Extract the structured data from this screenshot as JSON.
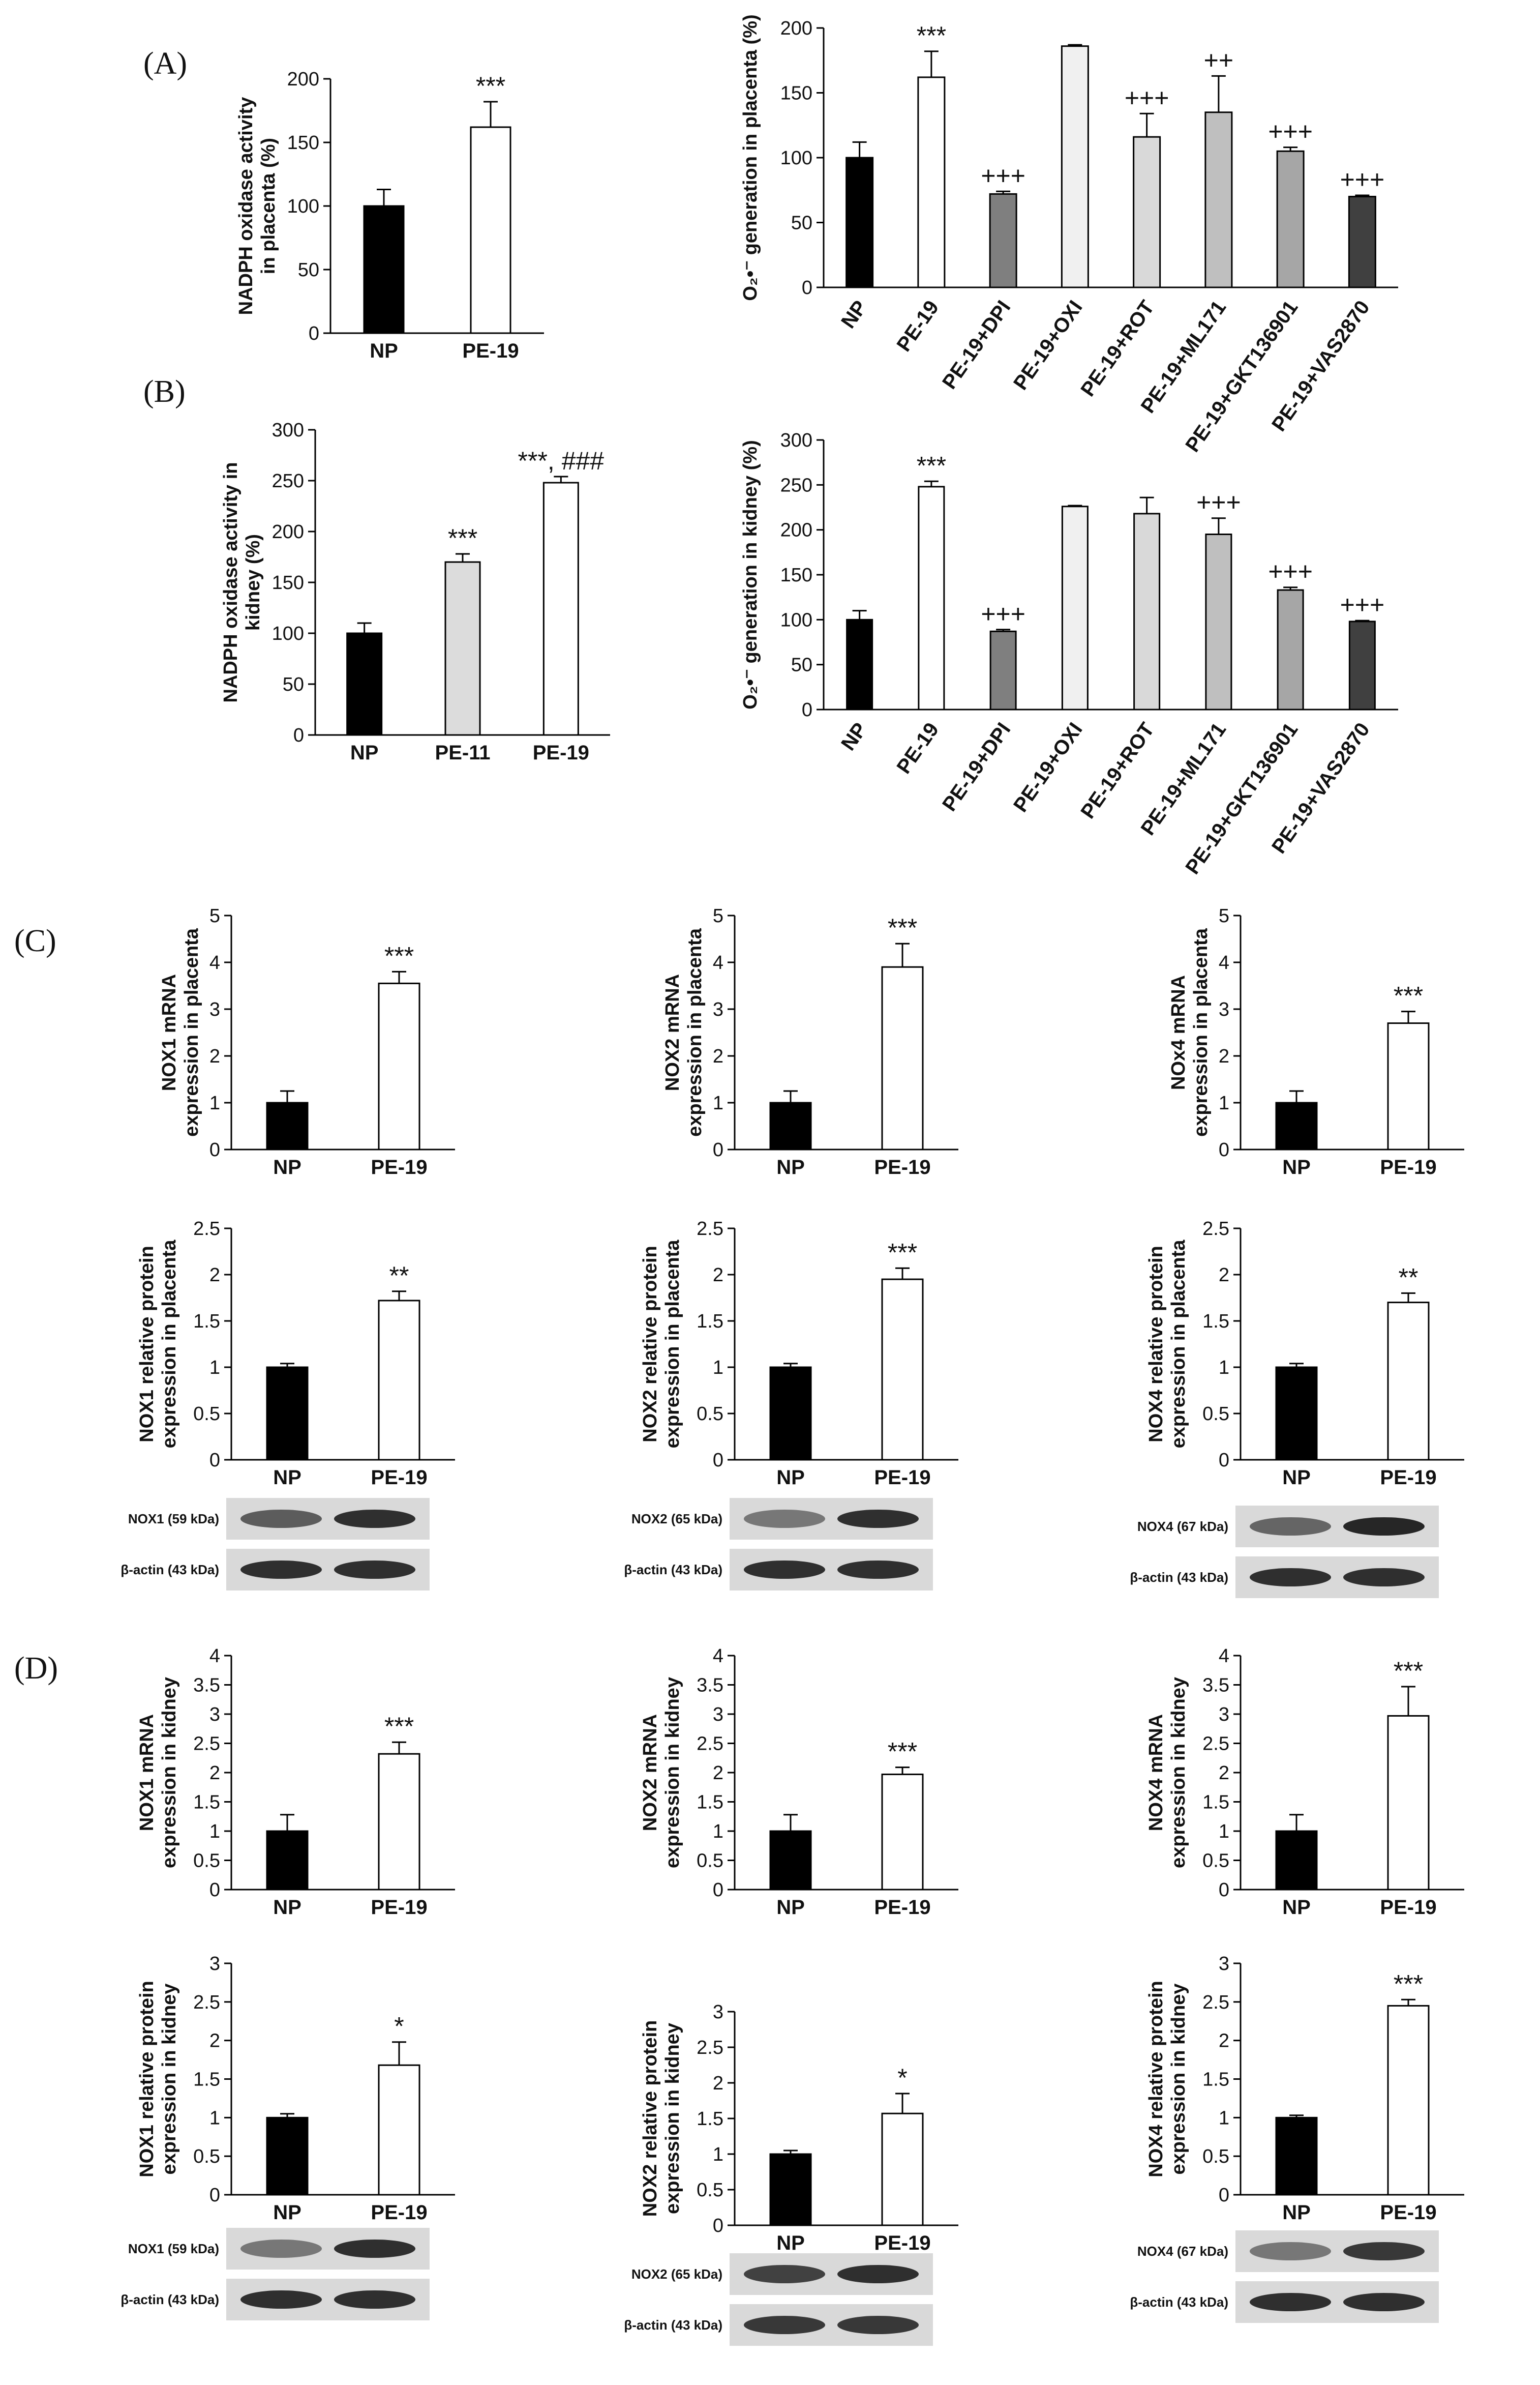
{
  "panels": {
    "A": "(A)",
    "B": "(B)",
    "C": "(C)",
    "D": "(D)"
  },
  "palette": {
    "NP": "#000000",
    "PE": "#ffffff",
    "PE11": "#dcdcdc",
    "DPI": "#7f7f7f",
    "OXI": "#f0f0f0",
    "ROT": "#d9d9d9",
    "ML171": "#bfbfbf",
    "GKT": "#a6a6a6",
    "VAS": "#404040"
  },
  "chart_data": [
    {
      "id": "A1",
      "type": "bar",
      "ylabel": [
        "NADPH oxidase activity",
        "in placenta (%)"
      ],
      "ylim": [
        0,
        200
      ],
      "yticks": [
        "0",
        "50",
        "100",
        "150",
        "200"
      ],
      "categories": [
        "NP",
        "PE-19"
      ],
      "values": [
        100,
        162
      ],
      "errors": [
        13,
        20
      ],
      "colors": [
        "NP",
        "PE"
      ],
      "sig": [
        "",
        "***"
      ]
    },
    {
      "id": "A2",
      "type": "bar",
      "ylabel": [
        "O₂•⁻ generation in placenta (%)"
      ],
      "ylim": [
        0,
        200
      ],
      "yticks": [
        "0",
        "50",
        "100",
        "150",
        "200"
      ],
      "categories": [
        "NP",
        "PE-19",
        "PE-19+DPI",
        "PE-19+OXI",
        "PE-19+ROT",
        "PE-19+ML171",
        "PE-19+GKT136901",
        "PE-19+VAS2870"
      ],
      "values": [
        100,
        162,
        72,
        186,
        116,
        135,
        105,
        70
      ],
      "errors": [
        12,
        20,
        2,
        1,
        18,
        28,
        3,
        1
      ],
      "colors": [
        "NP",
        "PE",
        "DPI",
        "OXI",
        "ROT",
        "ML171",
        "GKT",
        "VAS"
      ],
      "sig": [
        "",
        "***",
        "+++",
        "",
        "+++",
        "++",
        "+++",
        "+++"
      ]
    },
    {
      "id": "B1",
      "type": "bar",
      "ylabel": [
        "NADPH oxidase activity in",
        "kidney (%)"
      ],
      "ylim": [
        0,
        300
      ],
      "yticks": [
        "0",
        "50",
        "100",
        "150",
        "200",
        "250",
        "300"
      ],
      "categories": [
        "NP",
        "PE-11",
        "PE-19"
      ],
      "values": [
        100,
        170,
        248
      ],
      "errors": [
        10,
        8,
        6
      ],
      "colors": [
        "NP",
        "PE11",
        "PE"
      ],
      "sig": [
        "",
        "***",
        "***, ###"
      ]
    },
    {
      "id": "B2",
      "type": "bar",
      "ylabel": [
        "O₂•⁻ generation in kidney (%)"
      ],
      "ylim": [
        0,
        300
      ],
      "yticks": [
        "0",
        "50",
        "100",
        "150",
        "200",
        "250",
        "300"
      ],
      "categories": [
        "NP",
        "PE-19",
        "PE-19+DPI",
        "PE-19+OXI",
        "PE-19+ROT",
        "PE-19+ML171",
        "PE-19+GKT136901",
        "PE-19+VAS2870"
      ],
      "values": [
        100,
        248,
        87,
        226,
        218,
        195,
        133,
        98
      ],
      "errors": [
        10,
        6,
        2,
        1,
        18,
        18,
        3,
        1
      ],
      "colors": [
        "NP",
        "PE",
        "DPI",
        "OXI",
        "ROT",
        "ML171",
        "GKT",
        "VAS"
      ],
      "sig": [
        "",
        "***",
        "+++",
        "",
        "",
        "+++",
        "+++",
        "+++"
      ]
    },
    {
      "id": "C1",
      "type": "bar",
      "ylabel": [
        "NOX1 mRNA",
        "expression in placenta"
      ],
      "ylim": [
        0,
        5
      ],
      "yticks": [
        "0",
        "1",
        "2",
        "3",
        "4",
        "5"
      ],
      "categories": [
        "NP",
        "PE-19"
      ],
      "values": [
        1.0,
        3.55
      ],
      "errors": [
        0.25,
        0.25
      ],
      "colors": [
        "NP",
        "PE"
      ],
      "sig": [
        "",
        "***"
      ]
    },
    {
      "id": "C2",
      "type": "bar",
      "ylabel": [
        "NOX2 mRNA",
        "expression in placenta"
      ],
      "ylim": [
        0,
        5
      ],
      "yticks": [
        "0",
        "1",
        "2",
        "3",
        "4",
        "5"
      ],
      "categories": [
        "NP",
        "PE-19"
      ],
      "values": [
        1.0,
        3.9
      ],
      "errors": [
        0.25,
        0.5
      ],
      "colors": [
        "NP",
        "PE"
      ],
      "sig": [
        "",
        "***"
      ]
    },
    {
      "id": "C3",
      "type": "bar",
      "ylabel": [
        "NOx4 mRNA",
        "expression in placenta"
      ],
      "ylim": [
        0,
        5
      ],
      "yticks": [
        "0",
        "1",
        "2",
        "3",
        "4",
        "5"
      ],
      "categories": [
        "NP",
        "PE-19"
      ],
      "values": [
        1.0,
        2.7
      ],
      "errors": [
        0.25,
        0.25
      ],
      "colors": [
        "NP",
        "PE"
      ],
      "sig": [
        "",
        "***"
      ]
    },
    {
      "id": "C4",
      "type": "bar",
      "ylabel": [
        "NOX1 relative protein",
        "expression in placenta"
      ],
      "ylim": [
        0,
        2.5
      ],
      "yticks": [
        "0",
        "0.5",
        "1",
        "1.5",
        "2",
        "2.5"
      ],
      "categories": [
        "NP",
        "PE-19"
      ],
      "values": [
        1.0,
        1.72
      ],
      "errors": [
        0.04,
        0.1
      ],
      "colors": [
        "NP",
        "PE"
      ],
      "sig": [
        "",
        "**"
      ]
    },
    {
      "id": "C5",
      "type": "bar",
      "ylabel": [
        "NOX2 relative protein",
        "expression in placenta"
      ],
      "ylim": [
        0,
        2.5
      ],
      "yticks": [
        "0",
        "0.5",
        "1",
        "1.5",
        "2",
        "2.5"
      ],
      "categories": [
        "NP",
        "PE-19"
      ],
      "values": [
        1.0,
        1.95
      ],
      "errors": [
        0.04,
        0.12
      ],
      "colors": [
        "NP",
        "PE"
      ],
      "sig": [
        "",
        "***"
      ]
    },
    {
      "id": "C6",
      "type": "bar",
      "ylabel": [
        "NOX4 relative protein",
        "expression in placenta"
      ],
      "ylim": [
        0,
        2.5
      ],
      "yticks": [
        "0",
        "0.5",
        "1",
        "1.5",
        "2",
        "2.5"
      ],
      "categories": [
        "NP",
        "PE-19"
      ],
      "values": [
        1.0,
        1.7
      ],
      "errors": [
        0.04,
        0.1
      ],
      "colors": [
        "NP",
        "PE"
      ],
      "sig": [
        "",
        "**"
      ]
    },
    {
      "id": "D1",
      "type": "bar",
      "ylabel": [
        "NOX1 mRNA",
        "expression in kidney"
      ],
      "ylim": [
        0,
        4
      ],
      "yticks": [
        "0",
        "0.5",
        "1",
        "1.5",
        "2",
        "2.5",
        "3",
        "3.5",
        "4"
      ],
      "categories": [
        "NP",
        "PE-19"
      ],
      "values": [
        1.0,
        2.32
      ],
      "errors": [
        0.28,
        0.2
      ],
      "colors": [
        "NP",
        "PE"
      ],
      "sig": [
        "",
        "***"
      ]
    },
    {
      "id": "D2",
      "type": "bar",
      "ylabel": [
        "NOX2 mRNA",
        "expression in kidney"
      ],
      "ylim": [
        0,
        4
      ],
      "yticks": [
        "0",
        "0.5",
        "1",
        "1.5",
        "2",
        "2.5",
        "3",
        "3.5",
        "4"
      ],
      "categories": [
        "NP",
        "PE-19"
      ],
      "values": [
        1.0,
        1.97
      ],
      "errors": [
        0.28,
        0.12
      ],
      "colors": [
        "NP",
        "PE"
      ],
      "sig": [
        "",
        "***"
      ]
    },
    {
      "id": "D3",
      "type": "bar",
      "ylabel": [
        "NOX4 mRNA",
        "expression in kidney"
      ],
      "ylim": [
        0,
        4
      ],
      "yticks": [
        "0",
        "0.5",
        "1",
        "1.5",
        "2",
        "2.5",
        "3",
        "3.5",
        "4"
      ],
      "categories": [
        "NP",
        "PE-19"
      ],
      "values": [
        1.0,
        2.97
      ],
      "errors": [
        0.28,
        0.5
      ],
      "colors": [
        "NP",
        "PE"
      ],
      "sig": [
        "",
        "***"
      ]
    },
    {
      "id": "D4",
      "type": "bar",
      "ylabel": [
        "NOX1 relative protein",
        "expression in kidney"
      ],
      "ylim": [
        0,
        3
      ],
      "yticks": [
        "0",
        "0.5",
        "1",
        "1.5",
        "2",
        "2.5",
        "3"
      ],
      "categories": [
        "NP",
        "PE-19"
      ],
      "values": [
        1.0,
        1.68
      ],
      "errors": [
        0.05,
        0.3
      ],
      "colors": [
        "NP",
        "PE"
      ],
      "sig": [
        "",
        "*"
      ]
    },
    {
      "id": "D5",
      "type": "bar",
      "ylabel": [
        "NOX2 relative protein",
        "expression in kidney"
      ],
      "ylim": [
        0,
        3
      ],
      "yticks": [
        "0",
        "0.5",
        "1",
        "1.5",
        "2",
        "2.5",
        "3"
      ],
      "categories": [
        "NP",
        "PE-19"
      ],
      "values": [
        1.0,
        1.57
      ],
      "errors": [
        0.05,
        0.28
      ],
      "colors": [
        "NP",
        "PE"
      ],
      "sig": [
        "",
        "*"
      ]
    },
    {
      "id": "D6",
      "type": "bar",
      "ylabel": [
        "NOX4 relative protein",
        "expression in kidney"
      ],
      "ylim": [
        0,
        3
      ],
      "yticks": [
        "0",
        "0.5",
        "1",
        "1.5",
        "2",
        "2.5",
        "3"
      ],
      "categories": [
        "NP",
        "PE-19"
      ],
      "values": [
        1.0,
        2.45
      ],
      "errors": [
        0.03,
        0.08
      ],
      "colors": [
        "NP",
        "PE"
      ],
      "sig": [
        "",
        "***"
      ]
    }
  ],
  "blots": [
    {
      "id": "C4",
      "rows": [
        {
          "label": "NOX1 (59 kDa)",
          "strength": [
            0.6,
            0.85
          ]
        },
        {
          "label": "β-actin (43 kDa)",
          "strength": [
            0.85,
            0.85
          ]
        }
      ]
    },
    {
      "id": "C5",
      "rows": [
        {
          "label": "NOX2 (65 kDa)",
          "strength": [
            0.45,
            0.85
          ]
        },
        {
          "label": "β-actin (43 kDa)",
          "strength": [
            0.85,
            0.85
          ]
        }
      ]
    },
    {
      "id": "C6",
      "rows": [
        {
          "label": "NOX4 (67 kDa)",
          "strength": [
            0.55,
            0.9
          ]
        },
        {
          "label": "β-actin (43 kDa)",
          "strength": [
            0.85,
            0.85
          ]
        }
      ]
    },
    {
      "id": "D4",
      "rows": [
        {
          "label": "NOX1 (59 kDa)",
          "strength": [
            0.45,
            0.85
          ]
        },
        {
          "label": "β-actin (43 kDa)",
          "strength": [
            0.85,
            0.85
          ]
        }
      ]
    },
    {
      "id": "D5",
      "rows": [
        {
          "label": "NOX2 (65 kDa)",
          "strength": [
            0.75,
            0.85
          ]
        },
        {
          "label": "β-actin (43 kDa)",
          "strength": [
            0.8,
            0.8
          ]
        }
      ]
    },
    {
      "id": "D6",
      "rows": [
        {
          "label": "NOX4 (67 kDa)",
          "strength": [
            0.45,
            0.8
          ]
        },
        {
          "label": "β-actin (43 kDa)",
          "strength": [
            0.85,
            0.85
          ]
        }
      ]
    }
  ]
}
